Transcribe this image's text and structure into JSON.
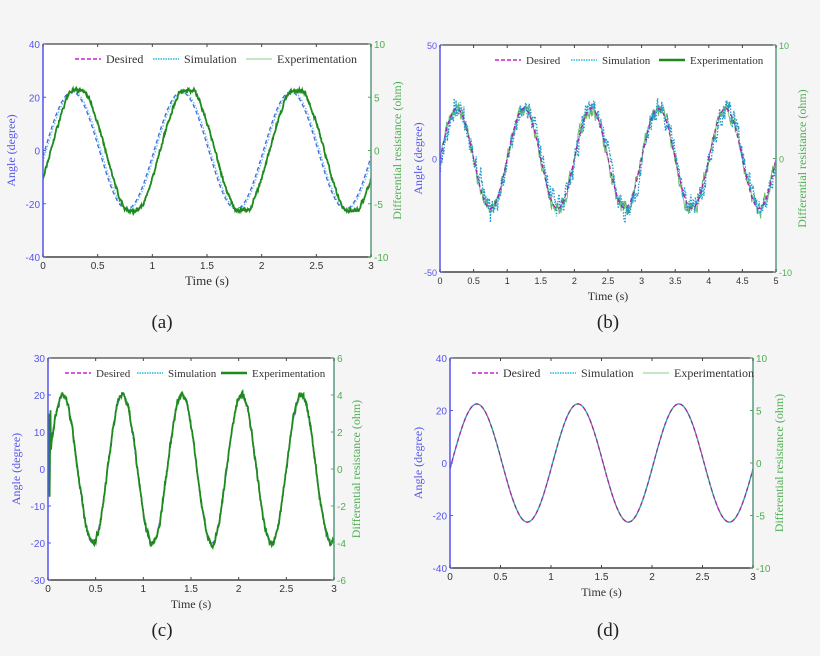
{
  "figure": {
    "background": "#f5f5f5",
    "colors": {
      "left_axis": "#5555ee",
      "right_axis": "#4caf50",
      "desired": "#cc22cc",
      "simulation": "#22bbdd",
      "experimentation_dark": "#1e8a1e",
      "experimentation_light": "#88cc88",
      "frame": "#444444"
    }
  },
  "chart_data": [
    {
      "id": "a",
      "type": "line",
      "subfigure_label": "(a)",
      "title": "",
      "xlabel": "Time (s)",
      "ylabel": "Angle (degree)",
      "ylabel_right": "Differential resistance (ohm)",
      "xlim": [
        0,
        3
      ],
      "ylim": [
        -40,
        40
      ],
      "ylim_right": [
        -10,
        10
      ],
      "xticks": [
        "0",
        "0.5",
        "1",
        "1.5",
        "2",
        "2.5",
        "3"
      ],
      "yticks": [
        "-40",
        "-20",
        "0",
        "20",
        "40"
      ],
      "yticks_right": [
        "-10",
        "-5",
        "0",
        "5",
        "10"
      ],
      "grid": false,
      "legend": {
        "position": "top-right",
        "entries": [
          "Desired",
          "Simulation",
          "Experimentation"
        ],
        "experimentation_style": "thin-light"
      },
      "series": [
        {
          "name": "Desired",
          "style": "dashed",
          "color": "#4466dd",
          "amplitude": 22,
          "frequency_hz": 1.0,
          "phase_deg": 0,
          "noise": 0
        },
        {
          "name": "Simulation",
          "style": "dotted",
          "color": "#66bbee",
          "amplitude": 22,
          "frequency_hz": 1.0,
          "phase_deg": -5,
          "noise": 0
        },
        {
          "name": "Experimentation",
          "style": "solid",
          "color": "#1e8a1e",
          "amplitude": 24,
          "frequency_hz": 1.0,
          "phase_deg": -20,
          "noise": 0.6,
          "flat_top": true
        }
      ],
      "peaks_approx": {
        "t": [
          0.25,
          1.25,
          2.25
        ],
        "angle": [
          24,
          24,
          24
        ]
      },
      "troughs_approx": {
        "t": [
          0.78,
          1.8,
          2.8
        ],
        "angle": [
          -24,
          -22,
          -24
        ]
      }
    },
    {
      "id": "b",
      "type": "line",
      "subfigure_label": "(b)",
      "title": "",
      "xlabel": "Time (s)",
      "ylabel": "Angle (degree)",
      "ylabel_right": "Differential resistance (ohm)",
      "xlim": [
        0,
        5
      ],
      "ylim": [
        -50,
        50
      ],
      "ylim_right": [
        -10,
        10
      ],
      "xticks": [
        "0",
        "0.5",
        "1",
        "1.5",
        "2",
        "2.5",
        "3",
        "3.5",
        "4",
        "4.5",
        "5"
      ],
      "yticks": [
        "-50",
        "0",
        "50"
      ],
      "yticks_right": [
        "-10",
        "0",
        "10"
      ],
      "grid": false,
      "legend": {
        "position": "top-right",
        "entries": [
          "Desired",
          "Simulation",
          "Experimentation"
        ],
        "experimentation_style": "thick-dark"
      },
      "series": [
        {
          "name": "Desired",
          "style": "dashed",
          "color": "#aa22aa",
          "amplitude": 22,
          "frequency_hz": 1.0,
          "phase_deg": 0,
          "noise": 0
        },
        {
          "name": "Simulation",
          "style": "dotted",
          "color": "#2299cc",
          "amplitude": 22,
          "frequency_hz": 1.0,
          "phase_deg": -6,
          "noise": 3.5
        },
        {
          "name": "Experimentation",
          "style": "solid",
          "color": "#66bb66",
          "amplitude": 22,
          "frequency_hz": 1.0,
          "phase_deg": 0,
          "noise": 2.5
        }
      ],
      "peaks_approx": {
        "t": [
          0.25,
          1.25,
          2.25,
          3.25,
          4.25
        ],
        "angle": [
          22,
          22,
          22,
          22,
          22
        ]
      },
      "troughs_approx": {
        "t": [
          0.75,
          1.75,
          2.8,
          3.8,
          4.8
        ],
        "angle": [
          -22,
          -25,
          -28,
          -22,
          -25
        ]
      }
    },
    {
      "id": "c",
      "type": "line",
      "subfigure_label": "(c)",
      "title": "",
      "xlabel": "Time (s)",
      "ylabel": "Angle (degree)",
      "ylabel_right": "Differential resistance (ohm)",
      "xlim": [
        0,
        3
      ],
      "ylim": [
        -30,
        30
      ],
      "ylim_right": [
        -6,
        6
      ],
      "xticks": [
        "0",
        "0.5",
        "1",
        "1.5",
        "2",
        "2.5",
        "3"
      ],
      "yticks": [
        "-30",
        "-20",
        "-10",
        "0",
        "10",
        "20",
        "30"
      ],
      "yticks_right": [
        "-6",
        "-4",
        "-2",
        "0",
        "2",
        "4",
        "6"
      ],
      "grid": false,
      "legend": {
        "position": "top-center",
        "entries": [
          "Desired",
          "Simulation",
          "Experimentation"
        ],
        "experimentation_style": "thick-dark"
      },
      "series": [
        {
          "name": "Desired",
          "style": "dashed",
          "color": "#cc22cc",
          "amplitude": 20,
          "frequency_hz": 1.6,
          "phase_deg": 0,
          "noise": 0
        },
        {
          "name": "Simulation",
          "style": "dotted",
          "color": "#22aadd",
          "amplitude": 20,
          "frequency_hz": 1.6,
          "phase_deg": 0,
          "noise": 0
        },
        {
          "name": "Experimentation",
          "style": "solid",
          "color": "#1e8a1e",
          "amplitude": 20,
          "frequency_hz": 1.6,
          "phase_deg": 0,
          "noise": 0.7,
          "start_spike": true
        }
      ],
      "peaks_approx": {
        "t": [
          0.16,
          0.79,
          1.42,
          2.04,
          2.66
        ],
        "angle": [
          20,
          20,
          20,
          20,
          20
        ]
      },
      "troughs_approx": {
        "t": [
          0.47,
          1.1,
          1.73,
          2.35,
          2.98
        ],
        "angle": [
          -20,
          -20,
          -20,
          -20,
          -20
        ]
      }
    },
    {
      "id": "d",
      "type": "line",
      "subfigure_label": "(d)",
      "title": "",
      "xlabel": "Time (s)",
      "ylabel": "Angle (degree)",
      "ylabel_right": "Differential resistance (ohm)",
      "xlim": [
        0,
        3
      ],
      "ylim": [
        -40,
        40
      ],
      "ylim_right": [
        -10,
        10
      ],
      "xticks": [
        "0",
        "0.5",
        "1",
        "1.5",
        "2",
        "2.5",
        "3"
      ],
      "yticks": [
        "-40",
        "-20",
        "0",
        "20",
        "40"
      ],
      "yticks_right": [
        "-10",
        "-5",
        "0",
        "5",
        "10"
      ],
      "grid": false,
      "legend": {
        "position": "top-right",
        "entries": [
          "Desired",
          "Simulation",
          "Experimentation"
        ],
        "experimentation_style": "thin-light"
      },
      "series": [
        {
          "name": "Desired",
          "style": "dashed",
          "color": "#aa22aa",
          "amplitude": 22.5,
          "frequency_hz": 1.0,
          "phase_deg": 0,
          "noise": 0
        },
        {
          "name": "Simulation",
          "style": "dotted",
          "color": "#22bbcc",
          "amplitude": 22.5,
          "frequency_hz": 1.0,
          "phase_deg": 0,
          "noise": 0
        },
        {
          "name": "Experimentation",
          "style": "solid",
          "color": "#3a8a5a",
          "amplitude": 22.5,
          "frequency_hz": 1.0,
          "phase_deg": 0,
          "noise": 0
        }
      ],
      "peaks_approx": {
        "t": [
          0.27,
          1.27,
          2.27
        ],
        "angle": [
          22.5,
          22.5,
          22.5
        ]
      },
      "troughs_approx": {
        "t": [
          0.77,
          1.77,
          2.77
        ],
        "angle": [
          -22.5,
          -22.5,
          -22.5
        ]
      }
    }
  ]
}
